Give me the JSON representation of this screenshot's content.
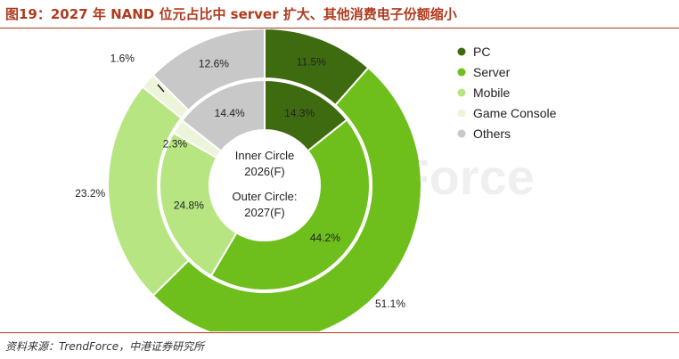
{
  "header": {
    "title": "图19：2027 年 NAND 位元占比中 server 扩大、其他消费电子份额缩小"
  },
  "footer": {
    "source": "资料来源：TrendForce，中港证券研究所"
  },
  "chart_data": {
    "type": "pie",
    "subtype": "double-donut",
    "categories": [
      "PC",
      "Server",
      "Mobile",
      "Game Console",
      "Others"
    ],
    "colors": [
      "#3f6b10",
      "#6fbf1c",
      "#b7e582",
      "#ecf5d9",
      "#c8c8c8"
    ],
    "series": [
      {
        "name": "Inner Circle 2026(F)",
        "ring": "inner",
        "values": [
          14.3,
          44.2,
          24.8,
          2.3,
          14.4
        ],
        "labels": [
          "14.3%",
          "44.2%",
          "24.8%",
          "2.3%",
          "14.4%"
        ]
      },
      {
        "name": "Outer Circle: 2027(F)",
        "ring": "outer",
        "values": [
          11.5,
          51.1,
          23.2,
          1.6,
          12.6
        ],
        "labels": [
          "11.5%",
          "51.1%",
          "23.2%",
          "1.6%",
          "12.6%"
        ]
      }
    ],
    "center_text": [
      "Inner Circle",
      "2026(F)",
      "Outer Circle:",
      "2027(F)"
    ],
    "legend": [
      "PC",
      "Server",
      "Mobile",
      "Game Console",
      "Others"
    ],
    "legend_position": "right",
    "watermark": "TrendForce"
  }
}
